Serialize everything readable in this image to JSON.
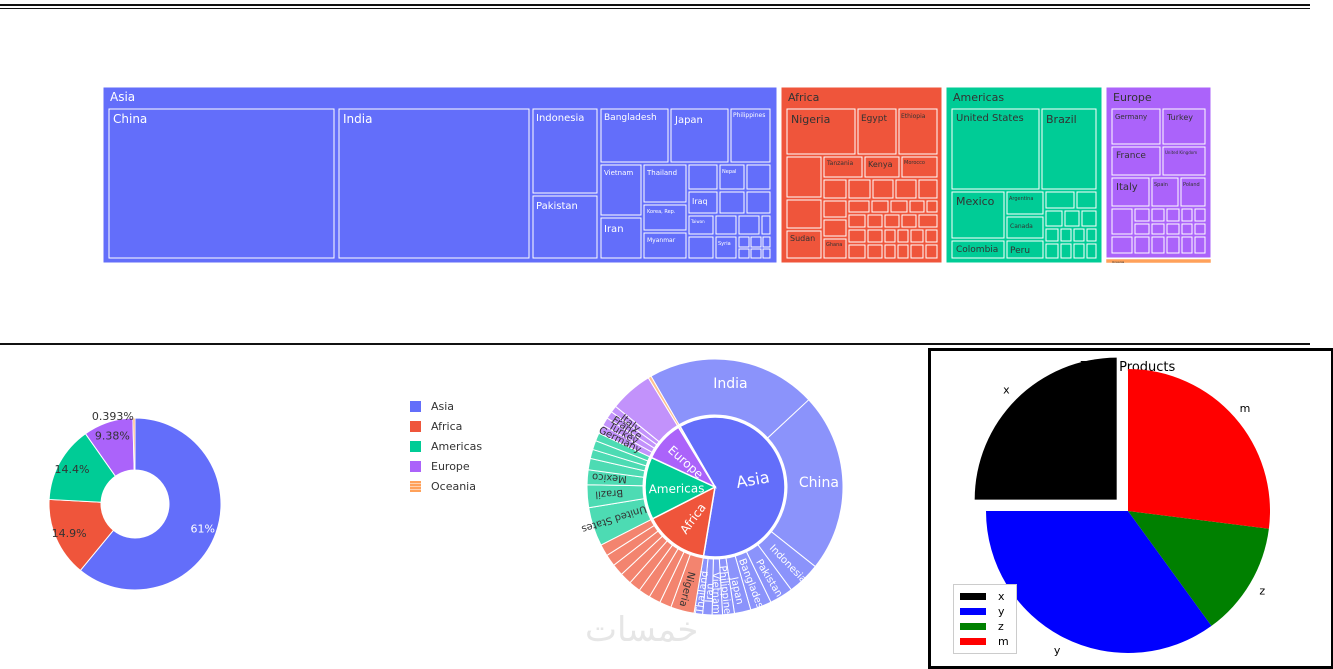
{
  "colors": {
    "asia": "#636efa",
    "africa": "#ef553b",
    "americas": "#00cc96",
    "europe": "#ab63fa",
    "oceania": "#ffa15a"
  },
  "chart_data": [
    {
      "type": "treemap",
      "groups": [
        {
          "name": "Asia",
          "children": [
            "China",
            "India",
            "Indonesia",
            "Pakistan",
            "Bangladesh",
            "Japan",
            "Philippines",
            "Vietnam",
            "Thailand",
            "Iran",
            "Iraq",
            "Korea, Rep.",
            "Myanmar",
            "Nepal",
            "Taiwan",
            "Syria"
          ]
        },
        {
          "name": "Africa",
          "children": [
            "Nigeria",
            "Egypt",
            "Ethiopia",
            "Tanzania",
            "Kenya",
            "Morocco",
            "Sudan",
            "Ghana"
          ]
        },
        {
          "name": "Americas",
          "children": [
            "United States",
            "Brazil",
            "Mexico",
            "Argentina",
            "Canada",
            "Colombia",
            "Peru"
          ]
        },
        {
          "name": "Europe",
          "children": [
            "Germany",
            "Turkey",
            "France",
            "United Kingdom",
            "Italy",
            "Spain",
            "Poland"
          ]
        },
        {
          "name": "Oceania",
          "children": []
        }
      ]
    },
    {
      "type": "pie",
      "hole": true,
      "slices": [
        {
          "label": "Asia",
          "value": 61,
          "text": "61%"
        },
        {
          "label": "Africa",
          "value": 14.9,
          "text": "14.9%"
        },
        {
          "label": "Americas",
          "value": 14.4,
          "text": "14.4%"
        },
        {
          "label": "Europe",
          "value": 9.38,
          "text": "9.38%"
        },
        {
          "label": "Oceania",
          "value": 0.393,
          "text": "0.393%"
        }
      ],
      "legend": [
        "Asia",
        "Africa",
        "Americas",
        "Europe",
        "Oceania"
      ],
      "legend_position": "right"
    },
    {
      "type": "sunburst",
      "inner": [
        {
          "label": "Asia",
          "value": 61
        },
        {
          "label": "Africa",
          "value": 14.9
        },
        {
          "label": "Americas",
          "value": 14.4
        },
        {
          "label": "Europe",
          "value": 9.38
        },
        {
          "label": "Oceania",
          "value": 0.393
        }
      ],
      "outer_labels": [
        "India",
        "China",
        "Indonesia",
        "Pakistan",
        "Bangladesh",
        "Japan",
        "Philippines",
        "Vietnam",
        "Iran",
        "Thailand",
        "Nigeria",
        "United States",
        "Brazil",
        "Mexico",
        "Germany",
        "Turkey",
        "France",
        "Italy"
      ]
    },
    {
      "type": "pie",
      "title": "Top 4 Products",
      "slices": [
        {
          "label": "x",
          "value": 25,
          "color": "#000000",
          "explode": true
        },
        {
          "label": "m",
          "value": 27,
          "color": "#ff0000"
        },
        {
          "label": "z",
          "value": 13,
          "color": "#008000"
        },
        {
          "label": "y",
          "value": 35,
          "color": "#0000ff"
        }
      ],
      "legend": [
        {
          "label": "x",
          "color": "#000000"
        },
        {
          "label": "y",
          "color": "#0000ff"
        },
        {
          "label": "z",
          "color": "#008000"
        },
        {
          "label": "m",
          "color": "#ff0000"
        }
      ],
      "legend_position": "bottom-left"
    }
  ],
  "watermark": "خمسات"
}
